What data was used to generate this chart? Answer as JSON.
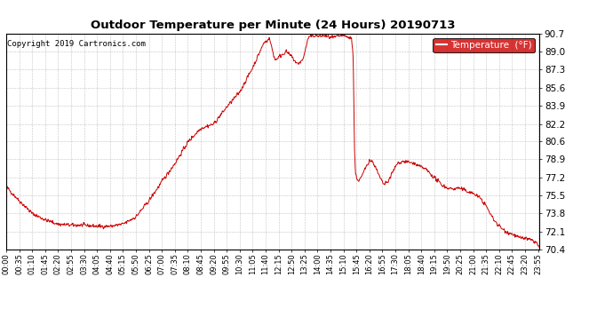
{
  "title": "Outdoor Temperature per Minute (24 Hours) 20190713",
  "copyright": "Copyright 2019 Cartronics.com",
  "legend_label": "Temperature  (°F)",
  "line_color": "#cc0000",
  "background_color": "#ffffff",
  "grid_color": "#aaaaaa",
  "ylim": [
    70.4,
    90.7
  ],
  "yticks": [
    70.4,
    72.1,
    73.8,
    75.5,
    77.2,
    78.9,
    80.6,
    82.2,
    83.9,
    85.6,
    87.3,
    89.0,
    90.7
  ],
  "xtick_labels": [
    "00:00",
    "00:35",
    "01:10",
    "01:45",
    "02:20",
    "02:55",
    "03:30",
    "04:05",
    "04:40",
    "05:15",
    "05:50",
    "06:25",
    "07:00",
    "07:35",
    "08:10",
    "08:45",
    "09:20",
    "09:55",
    "10:30",
    "11:05",
    "11:40",
    "12:15",
    "12:50",
    "13:25",
    "14:00",
    "14:35",
    "15:10",
    "15:45",
    "16:20",
    "16:55",
    "17:30",
    "18:05",
    "18:40",
    "19:15",
    "19:50",
    "20:25",
    "21:00",
    "21:35",
    "22:10",
    "22:45",
    "23:20",
    "23:55"
  ],
  "num_points": 1440,
  "key_points": {
    "0": 76.3,
    "35": 75.0,
    "70": 73.8,
    "105": 73.2,
    "140": 72.8,
    "175": 72.7,
    "210": 72.7,
    "245": 72.6,
    "280": 72.6,
    "315": 72.8,
    "350": 73.5,
    "385": 75.0,
    "420": 76.8,
    "455": 78.5,
    "490": 80.5,
    "525": 81.8,
    "560": 82.2,
    "595": 83.8,
    "630": 85.2,
    "665": 87.5,
    "695": 89.8,
    "710": 90.2,
    "725": 88.2,
    "740": 88.6,
    "755": 89.0,
    "770": 88.5,
    "785": 87.8,
    "800": 88.2,
    "815": 90.3,
    "830": 90.5,
    "845": 90.4,
    "855": 90.5,
    "865": 90.4,
    "875": 90.3,
    "885": 90.3,
    "895": 90.4,
    "905": 90.5,
    "915": 90.4,
    "925": 90.3,
    "932": 90.2,
    "936": 88.5,
    "939": 80.5,
    "942": 77.5,
    "950": 76.8,
    "960": 77.3,
    "970": 78.2,
    "980": 78.8,
    "990": 78.6,
    "1000": 77.8,
    "1010": 77.0,
    "1020": 76.5,
    "1030": 76.8,
    "1040": 77.5,
    "1055": 78.5,
    "1070": 78.7,
    "1085": 78.6,
    "1100": 78.5,
    "1115": 78.2,
    "1130": 78.0,
    "1145": 77.5,
    "1160": 77.0,
    "1175": 76.5,
    "1190": 76.2,
    "1205": 76.1,
    "1220": 76.2,
    "1235": 76.0,
    "1250": 75.8,
    "1265": 75.6,
    "1280": 75.2,
    "1295": 74.5,
    "1310": 73.5,
    "1325": 72.8,
    "1340": 72.3,
    "1355": 72.0,
    "1370": 71.8,
    "1385": 71.5,
    "1400": 71.5,
    "1415": 71.3,
    "1430": 71.1,
    "1439": 70.5
  },
  "figsize": [
    6.9,
    3.75
  ],
  "dpi": 100
}
